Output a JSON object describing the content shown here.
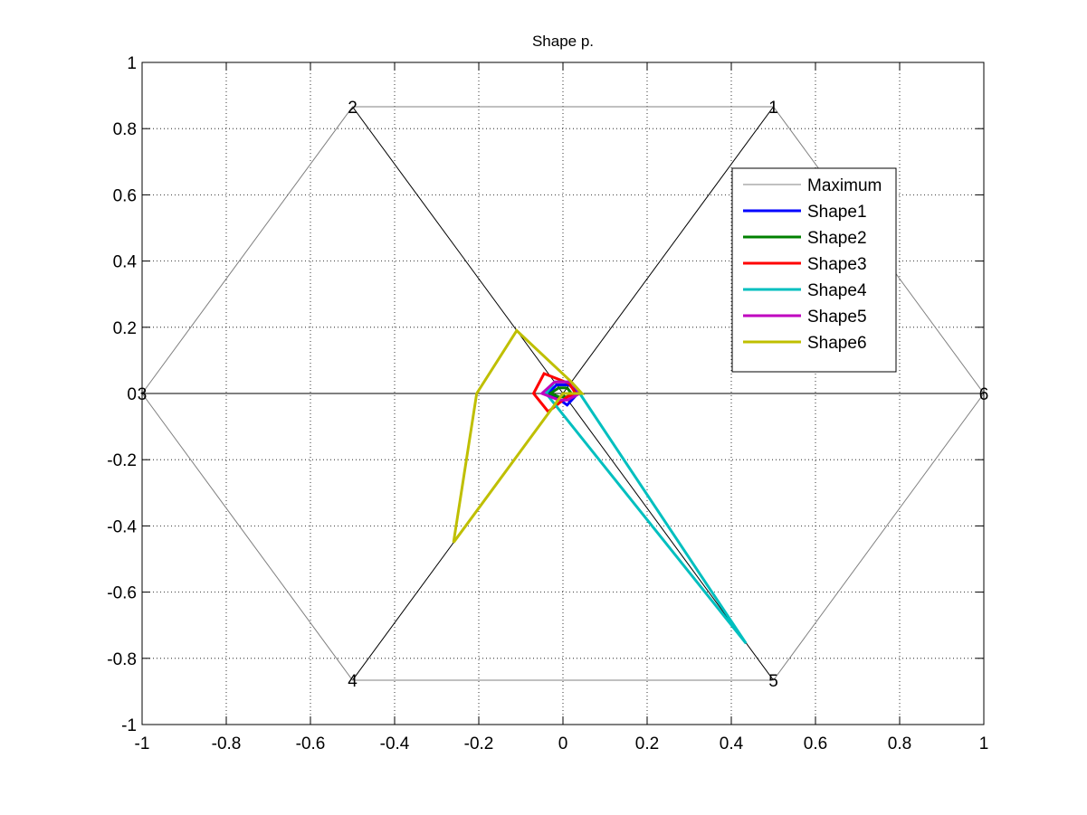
{
  "chart_data": {
    "type": "line",
    "title": "Shape p.",
    "xlabel": "",
    "ylabel": "",
    "xlim": [
      -1,
      1
    ],
    "ylim": [
      -1,
      1
    ],
    "xticks": [
      -1,
      -0.8,
      -0.6,
      -0.4,
      -0.2,
      0,
      0.2,
      0.4,
      0.6,
      0.8,
      1
    ],
    "yticks": [
      -1,
      -0.8,
      -0.6,
      -0.4,
      -0.2,
      0,
      0.2,
      0.4,
      0.6,
      0.8,
      1
    ],
    "grid": true,
    "legend_position": "top-right",
    "vertex_labels": [
      {
        "text": "1",
        "x": 0.5,
        "y": 0.866
      },
      {
        "text": "2",
        "x": -0.5,
        "y": 0.866
      },
      {
        "text": "3",
        "x": -1.0,
        "y": 0.0
      },
      {
        "text": "4",
        "x": -0.5,
        "y": -0.866
      },
      {
        "text": "5",
        "x": 0.5,
        "y": -0.866
      },
      {
        "text": "6",
        "x": 1.0,
        "y": 0.0
      }
    ],
    "spokes": [
      {
        "x": [
          0,
          0.5
        ],
        "y": [
          0,
          0.866
        ]
      },
      {
        "x": [
          0,
          -0.5
        ],
        "y": [
          0,
          0.866
        ]
      },
      {
        "x": [
          0,
          -1.0
        ],
        "y": [
          0,
          0.0
        ]
      },
      {
        "x": [
          0,
          -0.5
        ],
        "y": [
          0,
          -0.866
        ]
      },
      {
        "x": [
          0,
          0.5
        ],
        "y": [
          0,
          -0.866
        ]
      },
      {
        "x": [
          0,
          1.0
        ],
        "y": [
          0,
          0.0
        ]
      }
    ],
    "spoke_color": "#000000",
    "series": [
      {
        "name": "Maximum",
        "color": "#808080",
        "x": [
          0.5,
          -0.5,
          -1.0,
          -0.5,
          0.5,
          1.0,
          0.5
        ],
        "y": [
          0.866,
          0.866,
          0.0,
          -0.866,
          -0.866,
          0.0,
          0.866
        ]
      },
      {
        "name": "Shape1",
        "color": "#0000ff",
        "x": [
          0.015,
          -0.015,
          -0.035,
          -0.01,
          0.01,
          0.035,
          0.015
        ],
        "y": [
          0.026,
          0.026,
          0.0,
          -0.017,
          -0.035,
          0.0,
          0.026
        ]
      },
      {
        "name": "Shape2",
        "color": "#008000",
        "x": [
          0.01,
          -0.01,
          -0.03,
          -0.01,
          0.01,
          0.02,
          0.01
        ],
        "y": [
          0.017,
          0.017,
          0.0,
          -0.01,
          -0.01,
          0.0,
          0.017
        ]
      },
      {
        "name": "Shape3",
        "color": "#ff0000",
        "x": [
          0.015,
          -0.045,
          -0.07,
          -0.035,
          0.01,
          0.03,
          0.015
        ],
        "y": [
          0.03,
          0.06,
          0.0,
          -0.055,
          -0.01,
          0.0,
          0.03
        ]
      },
      {
        "name": "Shape4",
        "color": "#00bfbf",
        "x": [
          0.02,
          -0.02,
          -0.04,
          0.435,
          0.04,
          0.02
        ],
        "y": [
          0.035,
          0.035,
          0.0,
          -0.755,
          0.0,
          0.035
        ]
      },
      {
        "name": "Shape5",
        "color": "#bf00bf",
        "x": [
          0.02,
          -0.02,
          -0.05,
          -0.01,
          0.01,
          0.04,
          0.02
        ],
        "y": [
          0.035,
          0.035,
          0.0,
          -0.02,
          -0.02,
          0.0,
          0.035
        ]
      },
      {
        "name": "Shape6",
        "color": "#bfbf00",
        "x": [
          0.02,
          -0.11,
          -0.205,
          -0.26,
          0.0,
          0.045,
          0.02
        ],
        "y": [
          0.035,
          0.19,
          0.0,
          -0.45,
          0.0,
          0.0,
          0.035
        ]
      }
    ]
  }
}
